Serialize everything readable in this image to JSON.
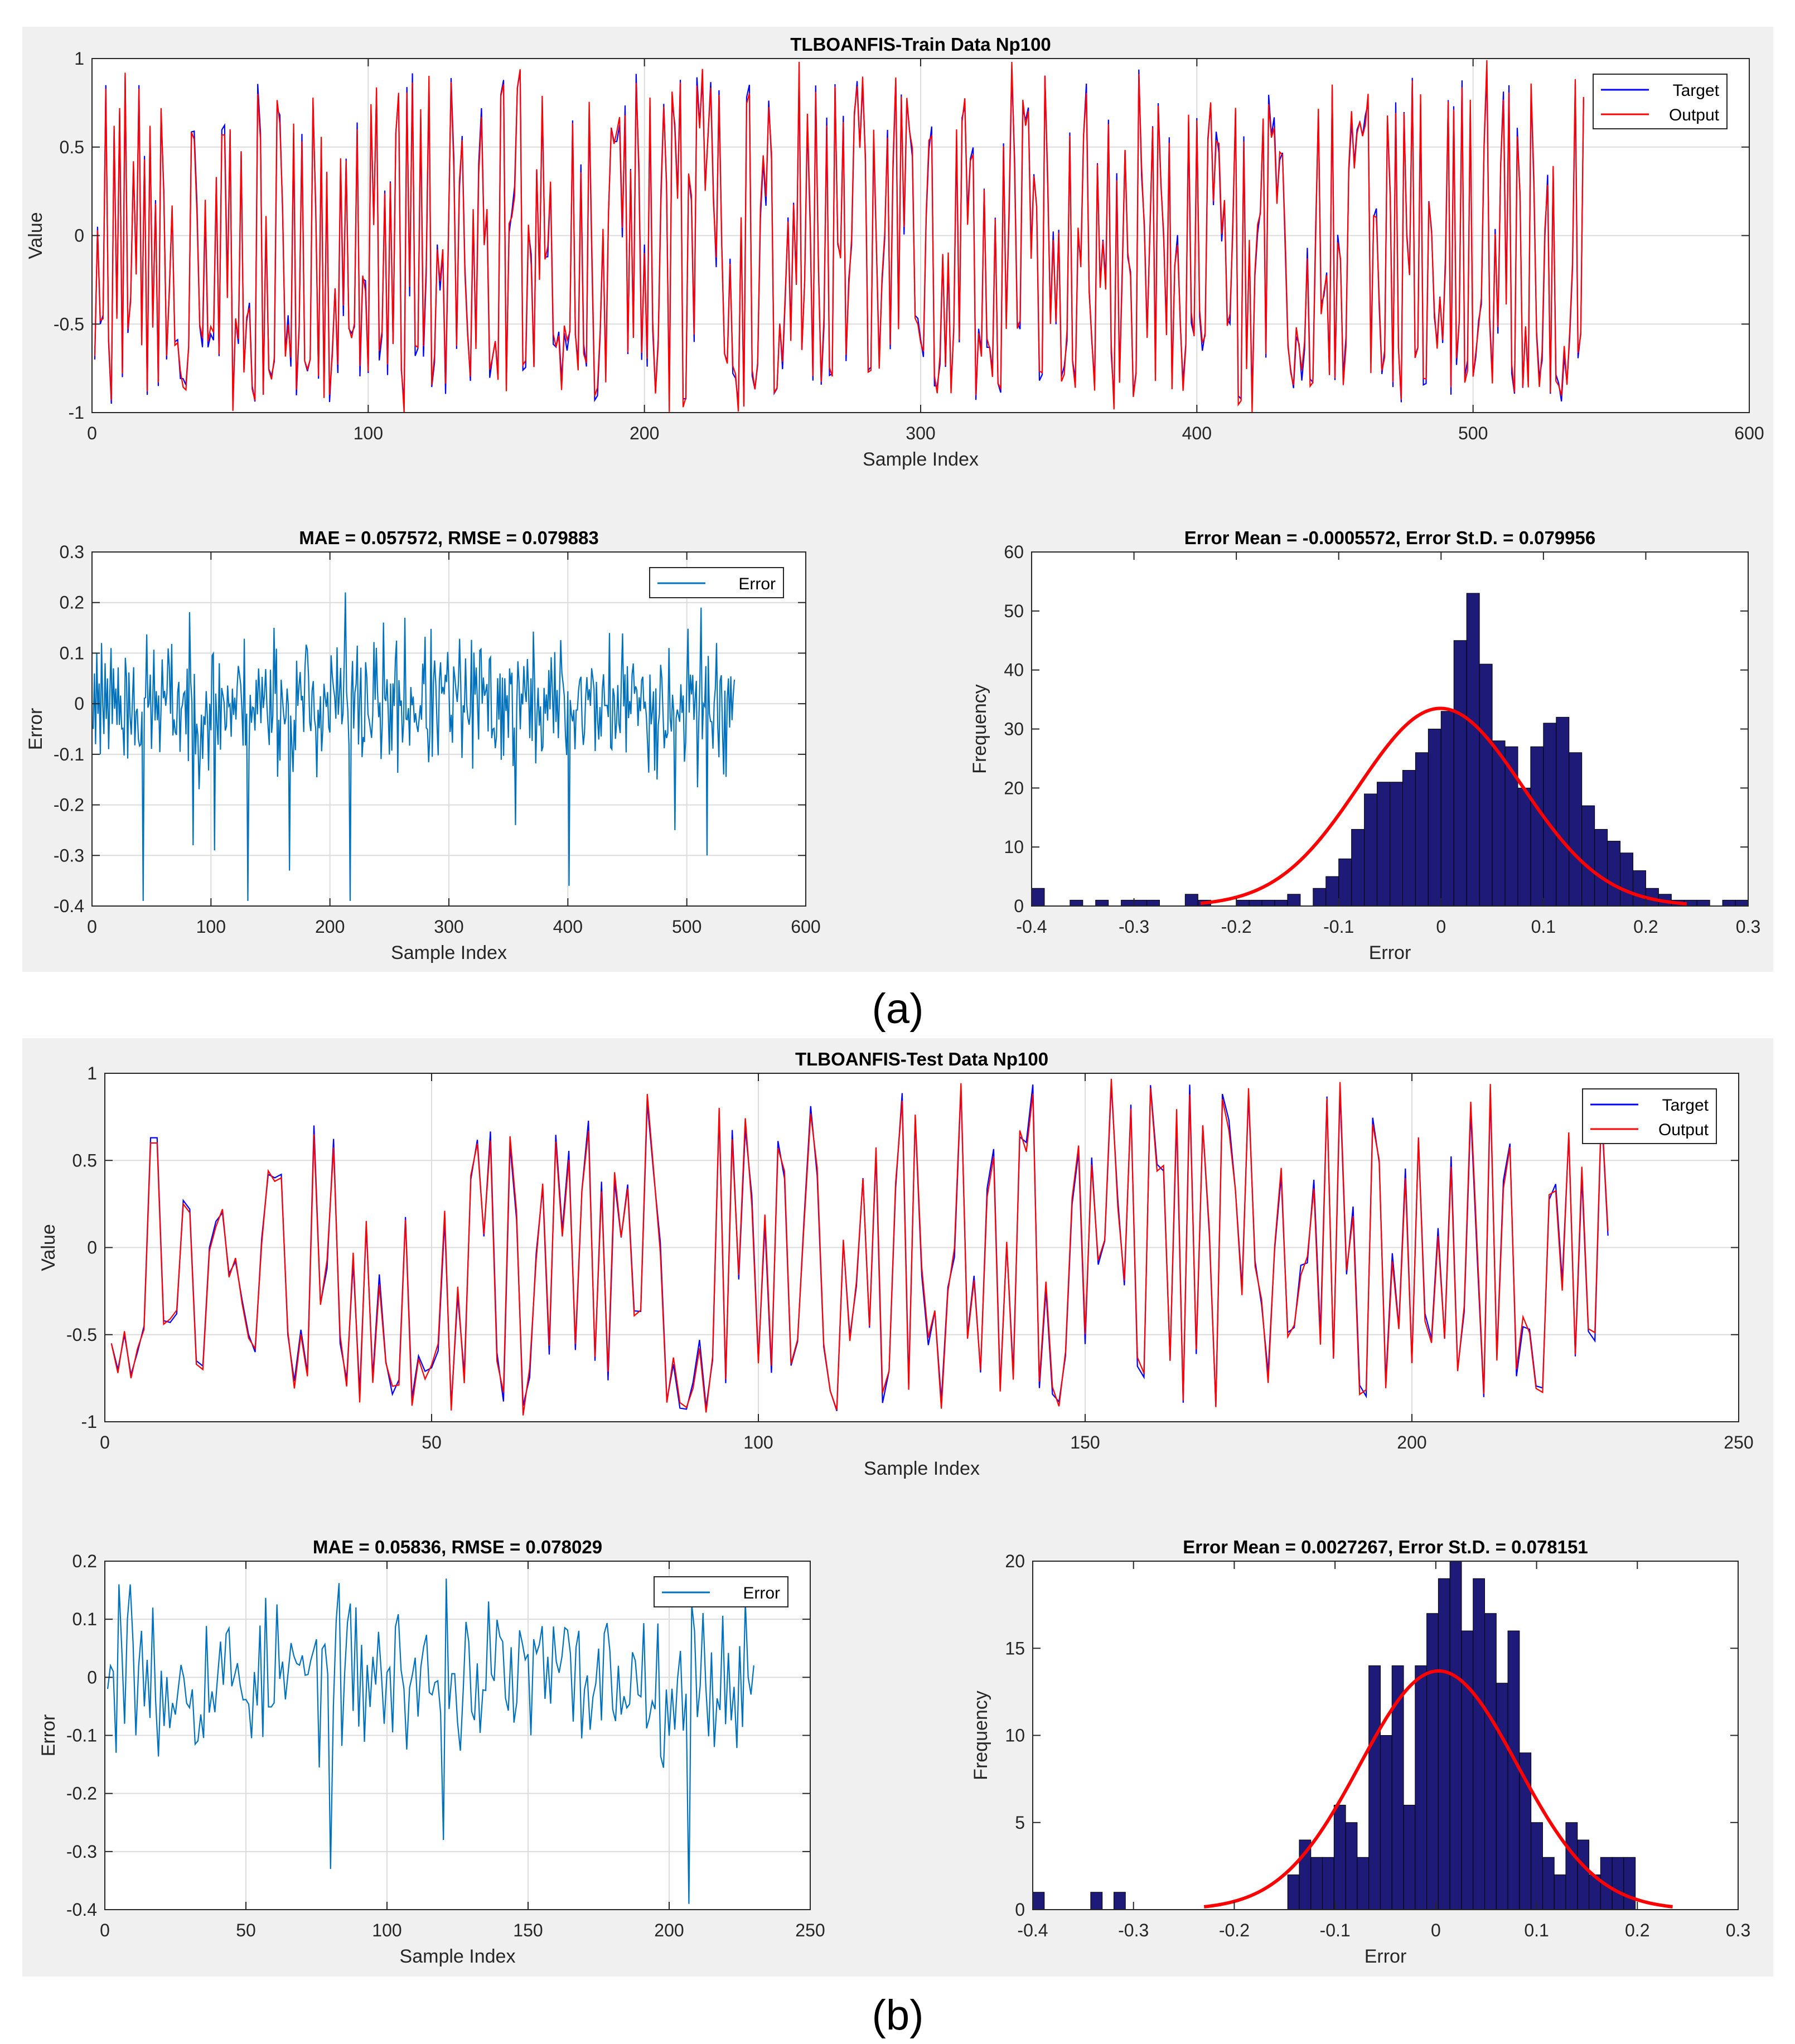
{
  "colors": {
    "panel_bg": "#f0f0f0",
    "target": "#0000ff",
    "output": "#ff0000",
    "error": "#0072bd",
    "hist_fill": "#1e1a78",
    "fit": "#ff0000",
    "grid": "#dcdcdc"
  },
  "captions": {
    "a": "(a)",
    "b": "(b)"
  },
  "chart_data": [
    {
      "id": "a_train",
      "type": "line",
      "panel": "a",
      "title": "TLBOANFIS-Train Data Np100",
      "xlabel": "Sample Index",
      "ylabel": "Value",
      "xlim": [
        0,
        600
      ],
      "ylim": [
        -1,
        1
      ],
      "xticks": [
        0,
        100,
        200,
        300,
        400,
        500,
        600
      ],
      "yticks": [
        -1,
        -0.5,
        0,
        0.5,
        1
      ],
      "ytick_labels": [
        "-1",
        "-0.5",
        "0",
        "0.5",
        "1"
      ],
      "legend": [
        "Target",
        "Output"
      ],
      "legend_position": "top-right",
      "n_points": 540,
      "seed": 11,
      "series": [
        {
          "name": "Target",
          "values": [
            -0.7,
            0.05,
            -0.5,
            -0.45,
            0.85,
            -0.6,
            -0.95,
            0.6,
            -0.45,
            0.7,
            -0.8,
            0.9,
            -0.55,
            -0.35,
            0.4,
            -0.2,
            0.85,
            -0.6,
            0.45,
            -0.9,
            0.6,
            -0.5,
            0.2,
            -0.85,
            0.7,
            0.25,
            -0.7,
            -0.3,
            0.15,
            -0.6
          ]
        },
        {
          "name": "Output",
          "values": [
            -0.68,
            0.03,
            -0.48,
            -0.47,
            0.83,
            -0.58,
            -0.93,
            0.62,
            -0.47,
            0.72,
            -0.78,
            0.92,
            -0.53,
            -0.37,
            0.42,
            -0.22,
            0.83,
            -0.62,
            0.43,
            -0.88,
            0.62,
            -0.52,
            0.18,
            -0.83,
            0.72,
            0.23,
            -0.68,
            -0.32,
            0.17,
            -0.62
          ]
        }
      ]
    },
    {
      "id": "a_error",
      "type": "line",
      "panel": "a",
      "title": "MAE = 0.057572, RMSE = 0.079883",
      "xlabel": "Sample Index",
      "ylabel": "Error",
      "xlim": [
        0,
        600
      ],
      "ylim": [
        -0.4,
        0.3
      ],
      "xticks": [
        0,
        100,
        200,
        300,
        400,
        500,
        600
      ],
      "yticks": [
        -0.4,
        -0.3,
        -0.2,
        -0.1,
        0,
        0.1,
        0.2,
        0.3
      ],
      "ytick_labels": [
        "-0.4",
        "-0.3",
        "-0.2",
        "-0.1",
        "0",
        "0.1",
        "0.2",
        "0.3"
      ],
      "legend": [
        "Error"
      ],
      "legend_position": "top-right",
      "n_points": 540,
      "seed": 23,
      "series": [
        {
          "name": "Error",
          "values": [
            -0.05,
            0.06,
            -0.08,
            0.1,
            -0.02,
            0.04,
            -0.1,
            0.12,
            0.0,
            -0.06,
            0.08,
            -0.03,
            0.05,
            -0.09,
            0.02,
            0.11,
            -0.04,
            0.07,
            -0.01,
            0.03
          ]
        }
      ],
      "spikes": [
        [
          42,
          -0.39
        ],
        [
          84,
          -0.28
        ],
        [
          102,
          -0.29
        ],
        [
          130,
          -0.39
        ],
        [
          152,
          0.15
        ],
        [
          165,
          -0.33
        ],
        [
          212,
          0.22
        ],
        [
          216,
          -0.39
        ],
        [
          262,
          0.17
        ],
        [
          355,
          -0.24
        ],
        [
          400,
          -0.36
        ],
        [
          489,
          -0.25
        ],
        [
          511,
          0.19
        ],
        [
          516,
          -0.3
        ],
        [
          530,
          -0.14
        ]
      ]
    },
    {
      "id": "a_hist",
      "type": "bar",
      "panel": "a",
      "title": "Error Mean = -0.0005572, Error St.D. = 0.079956",
      "xlabel": "Error",
      "ylabel": "Frequency",
      "xlim": [
        -0.4,
        0.3
      ],
      "ylim": [
        0,
        60
      ],
      "xticks": [
        -0.4,
        -0.3,
        -0.2,
        -0.1,
        0,
        0.1,
        0.2,
        0.3
      ],
      "xtick_labels": [
        "-0.4",
        "-0.3",
        "-0.2",
        "-0.1",
        "0",
        "0.1",
        "0.2",
        "0.3"
      ],
      "yticks": [
        0,
        10,
        20,
        30,
        40,
        50,
        60
      ],
      "ytick_labels": [
        "0",
        "10",
        "20",
        "30",
        "40",
        "50",
        "60"
      ],
      "bin_start": -0.4,
      "bin_width": 0.0125,
      "values": [
        3,
        0,
        0,
        1,
        0,
        1,
        0,
        1,
        1,
        1,
        0,
        0,
        2,
        1,
        0,
        0,
        1,
        1,
        1,
        1,
        2,
        0,
        3,
        5,
        8,
        13,
        19,
        21,
        21,
        23,
        26,
        30,
        33,
        45,
        53,
        41,
        28,
        27,
        20,
        27,
        31,
        32,
        26,
        17,
        13,
        11,
        9,
        6,
        3,
        2,
        1,
        1,
        1,
        0,
        1,
        1,
        0,
        0
      ],
      "fit": {
        "mean": -0.0005572,
        "std": 0.079956,
        "peak": 33.5,
        "xrange": [
          -0.235,
          0.24
        ]
      }
    },
    {
      "id": "b_test",
      "type": "line",
      "panel": "b",
      "title": "TLBOANFIS-Test Data Np100",
      "xlabel": "Sample Index",
      "ylabel": "Value",
      "xlim": [
        0,
        250
      ],
      "ylim": [
        -1,
        1
      ],
      "xticks": [
        0,
        50,
        100,
        150,
        200,
        250
      ],
      "yticks": [
        -1,
        -0.5,
        0,
        0.5,
        1
      ],
      "ytick_labels": [
        "-1",
        "-0.5",
        "0",
        "0.5",
        "1"
      ],
      "legend": [
        "Target",
        "Output"
      ],
      "legend_position": "top-right",
      "n_points": 230,
      "seed": 37,
      "series": [
        {
          "name": "Target",
          "values": [
            -0.55,
            -0.7,
            -0.5,
            -0.73,
            -0.6,
            -0.45,
            0.63,
            0.63,
            -0.42,
            -0.43,
            -0.38,
            0.27,
            0.22,
            -0.65,
            -0.68,
            0.0,
            0.15,
            0.2,
            -0.15,
            -0.08,
            -0.3,
            -0.5,
            -0.6,
            0.05,
            0.42,
            0.4,
            0.42,
            -0.5
          ]
        },
        {
          "name": "Output",
          "values": [
            -0.55,
            -0.72,
            -0.48,
            -0.75,
            -0.58,
            -0.47,
            0.6,
            0.6,
            -0.44,
            -0.41,
            -0.36,
            0.25,
            0.2,
            -0.67,
            -0.7,
            -0.02,
            0.12,
            0.22,
            -0.17,
            -0.06,
            -0.32,
            -0.52,
            -0.58,
            0.02,
            0.44,
            0.38,
            0.4,
            -0.48
          ]
        }
      ]
    },
    {
      "id": "b_error",
      "type": "line",
      "panel": "b",
      "title": "MAE = 0.05836, RMSE = 0.078029",
      "xlabel": "Sample Index",
      "ylabel": "Error",
      "xlim": [
        0,
        250
      ],
      "ylim": [
        -0.4,
        0.2
      ],
      "xticks": [
        0,
        50,
        100,
        150,
        200,
        250
      ],
      "yticks": [
        -0.4,
        -0.3,
        -0.2,
        -0.1,
        0,
        0.1,
        0.2
      ],
      "ytick_labels": [
        "-0.4",
        "-0.3",
        "-0.2",
        "-0.1",
        "0",
        "0.1",
        "0.2"
      ],
      "legend": [
        "Error"
      ],
      "legend_position": "top-right",
      "n_points": 230,
      "seed": 53,
      "series": [
        {
          "name": "Error",
          "values": [
            -0.02,
            0.02,
            0.01,
            -0.13,
            0.16,
            0.05,
            -0.08,
            0.1,
            -0.03,
            0.06,
            -0.1,
            0.02,
            0.08,
            -0.05,
            0.03,
            -0.07,
            0.12,
            -0.04
          ]
        }
      ],
      "spikes": [
        [
          8,
          0.16
        ],
        [
          79,
          -0.33
        ],
        [
          119,
          -0.28
        ],
        [
          120,
          0.17
        ],
        [
          206,
          -0.39
        ],
        [
          231,
          -0.11
        ]
      ]
    },
    {
      "id": "b_hist",
      "type": "bar",
      "panel": "b",
      "title": "Error Mean = 0.0027267, Error St.D. = 0.078151",
      "xlabel": "Error",
      "ylabel": "Frequency",
      "xlim": [
        -0.4,
        0.3
      ],
      "ylim": [
        0,
        20
      ],
      "xticks": [
        -0.4,
        -0.3,
        -0.2,
        -0.1,
        0,
        0.1,
        0.2,
        0.3
      ],
      "xtick_labels": [
        "-0.4",
        "-0.3",
        "-0.2",
        "-0.1",
        "0",
        "0.1",
        "0.2",
        "0.3"
      ],
      "yticks": [
        0,
        5,
        10,
        15,
        20
      ],
      "ytick_labels": [
        "0",
        "5",
        "10",
        "15",
        "20"
      ],
      "bin_start": -0.4,
      "bin_width": 0.0115,
      "values": [
        1,
        0,
        0,
        0,
        0,
        1,
        0,
        1,
        0,
        0,
        0,
        0,
        0,
        0,
        0,
        0,
        0,
        0,
        0,
        0,
        0,
        0,
        2,
        4,
        3,
        3,
        6,
        5,
        3,
        14,
        10,
        14,
        6,
        14,
        17,
        19,
        20,
        16,
        19,
        17,
        13,
        16,
        9,
        5,
        3,
        2,
        5,
        4,
        2,
        3,
        3,
        3,
        0,
        0,
        0,
        0,
        0,
        0,
        0,
        0,
        0
      ],
      "fit": {
        "mean": 0.0027267,
        "std": 0.078151,
        "peak": 13.7,
        "xrange": [
          -0.23,
          0.235
        ]
      }
    }
  ]
}
